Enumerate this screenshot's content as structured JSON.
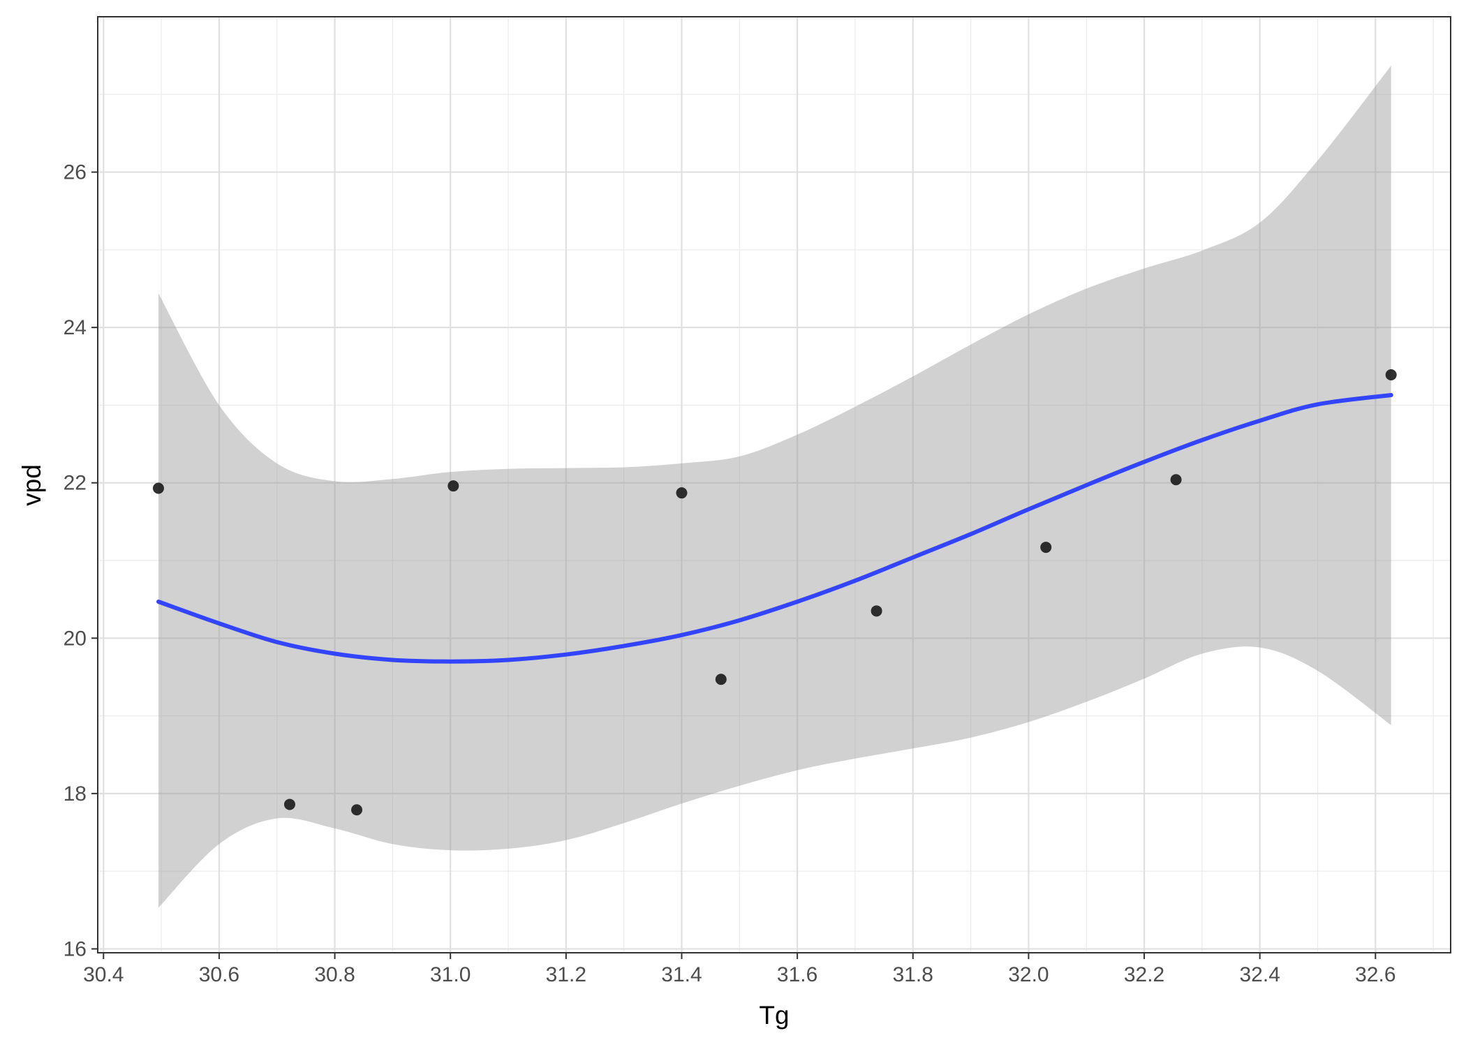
{
  "chart_data": {
    "type": "scatter",
    "title": "",
    "xlabel": "Tg",
    "ylabel": "vpd",
    "xlim": [
      30.39,
      32.73
    ],
    "ylim": [
      15.95,
      28.0
    ],
    "x_ticks_major": [
      30.4,
      30.6,
      30.8,
      31.0,
      31.2,
      31.4,
      31.6,
      31.8,
      32.0,
      32.2,
      32.4,
      32.6
    ],
    "x_tick_labels": [
      "30.4",
      "30.6",
      "30.8",
      "31.0",
      "31.2",
      "31.4",
      "31.6",
      "31.8",
      "32.0",
      "32.2",
      "32.4",
      "32.6"
    ],
    "y_ticks_major": [
      16,
      18,
      20,
      22,
      24,
      26
    ],
    "y_tick_labels": [
      "16",
      "18",
      "20",
      "22",
      "24",
      "26"
    ],
    "grid": true,
    "legend": "none",
    "series": [
      {
        "kind": "points",
        "x": [
          30.495,
          30.722,
          30.838,
          31.005,
          31.4,
          31.468,
          31.737,
          32.03,
          32.255,
          32.627
        ],
        "y": [
          21.93,
          17.86,
          17.79,
          21.96,
          21.87,
          19.47,
          20.35,
          21.17,
          22.04,
          23.39
        ]
      },
      {
        "kind": "smooth",
        "color": "#3344ff",
        "x": [
          30.495,
          30.6,
          30.7,
          30.8,
          30.9,
          31.0,
          31.1,
          31.2,
          31.3,
          31.4,
          31.5,
          31.6,
          31.7,
          31.8,
          31.9,
          32.0,
          32.1,
          32.2,
          32.3,
          32.4,
          32.5,
          32.627
        ],
        "y": [
          20.47,
          20.19,
          19.95,
          19.8,
          19.72,
          19.7,
          19.72,
          19.79,
          19.9,
          20.04,
          20.23,
          20.47,
          20.74,
          21.04,
          21.34,
          21.66,
          21.97,
          22.27,
          22.55,
          22.8,
          23.01,
          23.13
        ],
        "band_upper": [
          24.44,
          23.0,
          22.25,
          22.02,
          22.05,
          22.14,
          22.18,
          22.19,
          22.2,
          22.25,
          22.34,
          22.62,
          22.98,
          23.37,
          23.78,
          24.17,
          24.5,
          24.76,
          24.99,
          25.35,
          26.15,
          27.37
        ],
        "band_lower": [
          16.53,
          17.35,
          17.68,
          17.55,
          17.35,
          17.27,
          17.29,
          17.4,
          17.62,
          17.87,
          18.1,
          18.3,
          18.45,
          18.58,
          18.72,
          18.92,
          19.18,
          19.48,
          19.8,
          19.88,
          19.58,
          18.88
        ],
        "band_color": "#bbbbbb"
      }
    ]
  }
}
